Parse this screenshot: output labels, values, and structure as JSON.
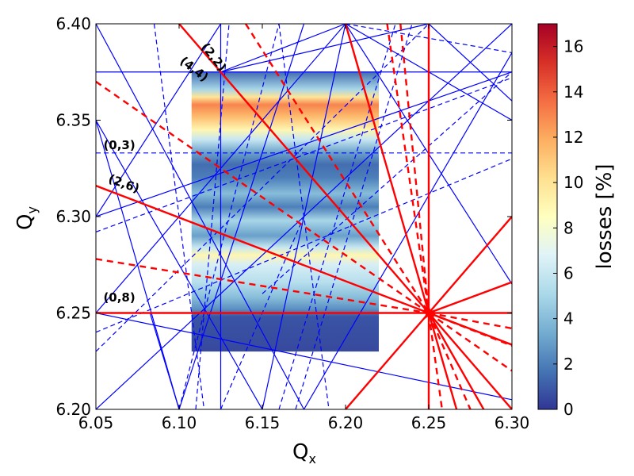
{
  "chart_data": {
    "type": "heatmap",
    "title": "",
    "xlabel_main": "Q",
    "xlabel_sub": "x",
    "ylabel_main": "Q",
    "ylabel_sub": "y",
    "xlim": [
      6.05,
      6.3
    ],
    "ylim": [
      6.2,
      6.4
    ],
    "x_ticks": [
      "6.05",
      "6.10",
      "6.15",
      "6.20",
      "6.25",
      "6.30"
    ],
    "y_ticks": [
      "6.20",
      "6.25",
      "6.30",
      "6.35",
      "6.40"
    ],
    "colorbar": {
      "label": "losses [%]",
      "range": [
        0,
        17
      ],
      "ticks": [
        "0",
        "2",
        "4",
        "6",
        "8",
        "10",
        "12",
        "14",
        "16"
      ]
    },
    "heatmap_extent": {
      "x": [
        6.1075,
        6.22
      ],
      "y": [
        6.23,
        6.375
      ]
    },
    "heatmap_profile": [
      {
        "y": 6.23,
        "v": 0.5
      },
      {
        "y": 6.248,
        "v": 0.8
      },
      {
        "y": 6.252,
        "v": 2.5
      },
      {
        "y": 6.258,
        "v": 4.0
      },
      {
        "y": 6.266,
        "v": 5.5
      },
      {
        "y": 6.275,
        "v": 6.5
      },
      {
        "y": 6.28,
        "v": 9.0
      },
      {
        "y": 6.284,
        "v": 6.0
      },
      {
        "y": 6.29,
        "v": 3.0
      },
      {
        "y": 6.298,
        "v": 5.0
      },
      {
        "y": 6.305,
        "v": 2.0
      },
      {
        "y": 6.312,
        "v": 4.0
      },
      {
        "y": 6.32,
        "v": 2.0
      },
      {
        "y": 6.327,
        "v": 1.5
      },
      {
        "y": 6.333,
        "v": 3.0
      },
      {
        "y": 6.34,
        "v": 6.0
      },
      {
        "y": 6.345,
        "v": 9.0
      },
      {
        "y": 6.352,
        "v": 11.5
      },
      {
        "y": 6.358,
        "v": 13.0
      },
      {
        "y": 6.362,
        "v": 10.0
      },
      {
        "y": 6.366,
        "v": 5.0
      },
      {
        "y": 6.375,
        "v": 1.5
      }
    ],
    "resonance_labels": [
      {
        "text": "(2,2)",
        "x": 6.113,
        "y": 6.388,
        "rotate": 52
      },
      {
        "text": "(4,4)",
        "x": 6.1,
        "y": 6.38,
        "rotate": 38
      },
      {
        "text": "(0,3)",
        "x": 6.0545,
        "y": 6.335,
        "rotate": 0
      },
      {
        "text": "(2,6)",
        "x": 6.057,
        "y": 6.318,
        "rotate": 20
      },
      {
        "text": "(0,8)",
        "x": 6.0545,
        "y": 6.256,
        "rotate": 0
      }
    ],
    "resonance_lines": {
      "blue_solid": [
        [
          [
            6.05,
            6.375
          ],
          [
            6.3,
            6.375
          ]
        ],
        [
          [
            6.125,
            6.2
          ],
          [
            6.125,
            6.4
          ]
        ],
        [
          [
            6.05,
            6.25
          ],
          [
            6.3,
            6.25
          ]
        ],
        [
          [
            6.05,
            6.4
          ],
          [
            6.175,
            6.2
          ]
        ],
        [
          [
            6.1,
            6.2
          ],
          [
            6.175,
            6.4
          ]
        ],
        [
          [
            6.05,
            6.35
          ],
          [
            6.1,
            6.2
          ]
        ],
        [
          [
            6.05,
            6.3
          ],
          [
            6.125,
            6.4
          ]
        ],
        [
          [
            6.2,
            6.4
          ],
          [
            6.3,
            6.35
          ]
        ],
        [
          [
            6.2,
            6.4
          ],
          [
            6.3,
            6.265
          ]
        ],
        [
          [
            6.05,
            6.3
          ],
          [
            6.3,
            6.375
          ]
        ],
        [
          [
            6.05,
            6.25
          ],
          [
            6.2,
            6.4
          ]
        ],
        [
          [
            6.05,
            6.2
          ],
          [
            6.3,
            6.4
          ]
        ],
        [
          [
            6.05,
            6.35
          ],
          [
            6.15,
            6.2
          ]
        ],
        [
          [
            6.125,
            6.375
          ],
          [
            6.2,
            6.4
          ]
        ],
        [
          [
            6.125,
            6.375
          ],
          [
            6.25,
            6.4
          ]
        ],
        [
          [
            6.15,
            6.2
          ],
          [
            6.2,
            6.4
          ]
        ],
        [
          [
            6.05,
            6.25
          ],
          [
            6.3,
            6.205
          ]
        ],
        [
          [
            6.175,
            6.2
          ],
          [
            6.3,
            6.385
          ]
        ],
        [
          [
            6.25,
            6.4
          ],
          [
            6.3,
            6.36
          ]
        ],
        [
          [
            6.2,
            6.4
          ],
          [
            6.25,
            6.25
          ]
        ],
        [
          [
            6.0825,
            6.25
          ],
          [
            6.1,
            6.2
          ]
        ]
      ],
      "blue_dashed": [
        [
          [
            6.05,
            6.333
          ],
          [
            6.3,
            6.333
          ]
        ],
        [
          [
            6.05,
            6.292
          ],
          [
            6.3,
            6.372
          ]
        ],
        [
          [
            6.05,
            6.23
          ],
          [
            6.25,
            6.4
          ]
        ],
        [
          [
            6.11,
            6.2
          ],
          [
            6.13,
            6.4
          ]
        ],
        [
          [
            6.085,
            6.4
          ],
          [
            6.115,
            6.2
          ]
        ],
        [
          [
            6.15,
            6.26
          ],
          [
            6.3,
            6.375
          ]
        ],
        [
          [
            6.17,
            6.2
          ],
          [
            6.24,
            6.4
          ]
        ],
        [
          [
            6.2,
            6.4
          ],
          [
            6.3,
            6.385
          ]
        ],
        [
          [
            6.125,
            6.2
          ],
          [
            6.175,
            6.3
          ]
        ],
        [
          [
            6.16,
            6.2
          ],
          [
            6.23,
            6.4
          ]
        ],
        [
          [
            6.05,
            6.24
          ],
          [
            6.3,
            6.33
          ]
        ],
        [
          [
            6.1,
            6.2
          ],
          [
            6.16,
            6.4
          ]
        ],
        [
          [
            6.16,
            6.4
          ],
          [
            6.19,
            6.2
          ]
        ]
      ],
      "red_solid": [
        [
          [
            6.05,
            6.25
          ],
          [
            6.3,
            6.25
          ]
        ],
        [
          [
            6.25,
            6.2
          ],
          [
            6.25,
            6.4
          ]
        ],
        [
          [
            6.05,
            6.316
          ],
          [
            6.3,
            6.2335
          ]
        ],
        [
          [
            6.1,
            6.4
          ],
          [
            6.3,
            6.2
          ]
        ],
        [
          [
            6.2,
            6.4
          ],
          [
            6.25,
            6.25
          ]
        ],
        [
          [
            6.25,
            6.25
          ],
          [
            6.3,
            6.3
          ]
        ],
        [
          [
            6.2,
            6.2
          ],
          [
            6.25,
            6.25
          ]
        ],
        [
          [
            6.25,
            6.25
          ],
          [
            6.2667,
            6.2
          ]
        ],
        [
          [
            6.25,
            6.25
          ],
          [
            6.283,
            6.2
          ]
        ],
        [
          [
            6.25,
            6.25
          ],
          [
            6.3,
            6.2335
          ]
        ],
        [
          [
            6.25,
            6.25
          ],
          [
            6.3,
            6.266
          ]
        ]
      ],
      "red_dashed": [
        [
          [
            6.05,
            6.37
          ],
          [
            6.25,
            6.25
          ]
        ],
        [
          [
            6.05,
            6.278
          ],
          [
            6.25,
            6.25
          ]
        ],
        [
          [
            6.14,
            6.4
          ],
          [
            6.25,
            6.25
          ]
        ],
        [
          [
            6.225,
            6.4
          ],
          [
            6.25,
            6.25
          ]
        ],
        [
          [
            6.233,
            6.4
          ],
          [
            6.25,
            6.25
          ]
        ],
        [
          [
            6.25,
            6.25
          ],
          [
            6.258,
            6.2
          ]
        ],
        [
          [
            6.25,
            6.25
          ],
          [
            6.275,
            6.2
          ]
        ],
        [
          [
            6.25,
            6.25
          ],
          [
            6.3,
            6.22
          ]
        ],
        [
          [
            6.25,
            6.25
          ],
          [
            6.3,
            6.242
          ]
        ],
        [
          [
            6.25,
            6.25
          ],
          [
            6.3,
            6.233
          ]
        ]
      ]
    },
    "colors": {
      "blue_line": "#0000ff",
      "red_line": "#ff0000",
      "cmap": [
        "#313695",
        "#4575b4",
        "#74add1",
        "#abd9e9",
        "#e0f3f8",
        "#ffffbf",
        "#fee090",
        "#fdae61",
        "#f46d43",
        "#d73027",
        "#a50026"
      ]
    }
  }
}
